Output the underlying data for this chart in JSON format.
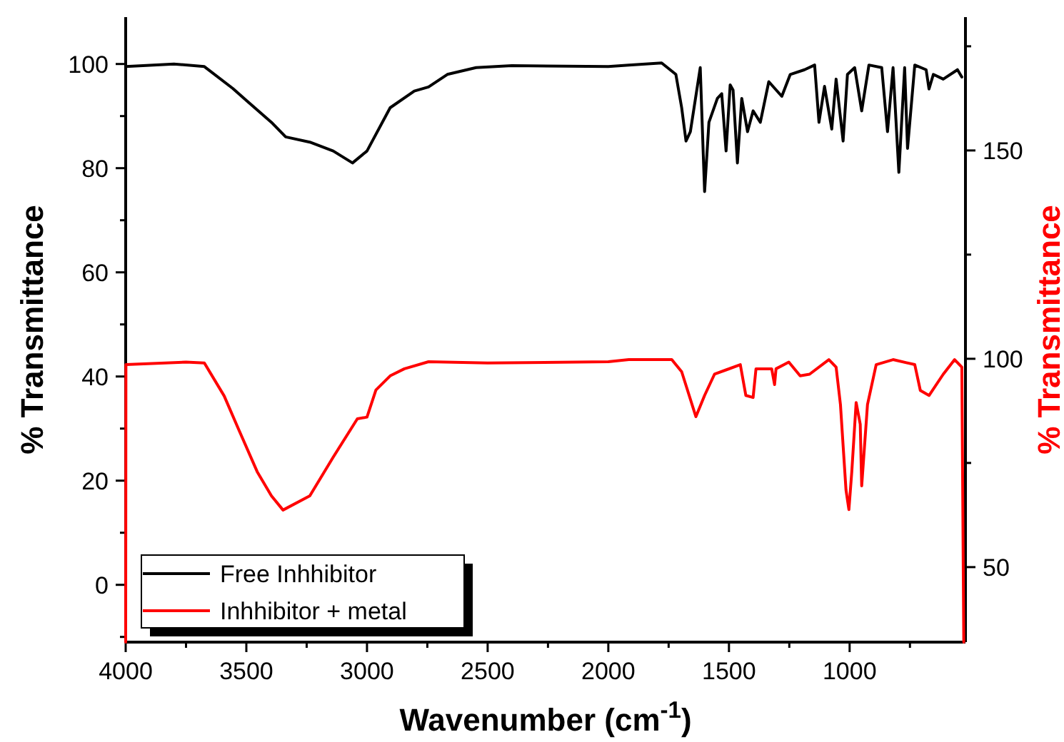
{
  "chart_data": {
    "type": "line",
    "xlabel": "Wavenumber (cm$^{-1}$)",
    "ylabel": "% Transmittance",
    "y2label": "% Transmittance",
    "xlim": [
      4000,
      520
    ],
    "xticks": [
      4000,
      {
        "value": 3750,
        "label": null
      },
      3500,
      {
        "value": 3250,
        "label": null
      },
      3000,
      {
        "value": 2750,
        "label": null
      },
      2500,
      {
        "value": 2250,
        "label": null
      },
      2000,
      {
        "value": 1750,
        "label": null
      },
      1500,
      {
        "value": 1250,
        "label": null
      },
      1000,
      {
        "value": 750,
        "label": null
      }
    ],
    "ylim": [
      -11,
      109
    ],
    "yticks": [
      {
        "value": -10,
        "label": null
      },
      0,
      {
        "value": 10,
        "label": null
      },
      20,
      {
        "value": 30,
        "label": null
      },
      40,
      {
        "value": 50,
        "label": null
      },
      60,
      {
        "value": 70,
        "label": null
      },
      80,
      {
        "value": 90,
        "label": null
      },
      100
    ],
    "y2lim": [
      32,
      182
    ],
    "y2ticks": [
      50,
      {
        "value": 75,
        "label": null
      },
      100,
      {
        "value": 125,
        "label": null
      },
      150,
      {
        "value": 175,
        "label": null
      }
    ],
    "legend": "bottom left",
    "grid": false,
    "marker": "none",
    "line_style": "solid",
    "series": [
      {
        "name": "Free Inhhibitor",
        "color": "#000000",
        "x": [
          4000,
          3800,
          3674,
          3556,
          3500,
          3396,
          3337,
          3237,
          3140,
          3060,
          3000,
          2904,
          2804,
          2745,
          2667,
          2548,
          2400,
          2000,
          1915,
          1779,
          1720,
          1696,
          1678,
          1660,
          1619,
          1607,
          1601,
          1583,
          1548,
          1530,
          1512,
          1495,
          1483,
          1465,
          1447,
          1423,
          1400,
          1370,
          1335,
          1281,
          1246,
          1187,
          1145,
          1127,
          1104,
          1074,
          1056,
          1027,
          1009,
          979,
          950,
          920,
          867,
          843,
          820,
          796,
          772,
          760,
          730,
          683,
          671,
          653,
          612,
          553,
          535
        ],
        "values": [
          99.5,
          100,
          99.5,
          95.3,
          93,
          88.8,
          86,
          85,
          83.3,
          81,
          83.3,
          91.6,
          94.8,
          95.6,
          98,
          99.3,
          99.7,
          99.5,
          99.8,
          100.2,
          98,
          91.6,
          85.2,
          87,
          99.3,
          83.3,
          75.5,
          88.8,
          93.4,
          94.3,
          83.3,
          96,
          95,
          81,
          93.4,
          87,
          91,
          88.8,
          96.6,
          93.8,
          98,
          98.9,
          99.8,
          88.8,
          95.7,
          87.5,
          97.1,
          85.2,
          98,
          99.3,
          91,
          99.8,
          99.3,
          87,
          99.3,
          79.2,
          99.3,
          83.8,
          99.8,
          98.9,
          95.2,
          98,
          97.1,
          98.9,
          97.5
        ]
      },
      {
        "name": "Inhhibitor + metal",
        "color": "#ff0000",
        "axis": "y2",
        "x": [
          4000,
          3999,
          3750,
          3674,
          3592,
          3533,
          3455,
          3396,
          3348,
          3237,
          3140,
          3040,
          3000,
          2963,
          2904,
          2845,
          2745,
          2500,
          2000,
          1915,
          1737,
          1696,
          1637,
          1601,
          1560,
          1453,
          1430,
          1400,
          1388,
          1323,
          1311,
          1305,
          1252,
          1205,
          1166,
          1086,
          1056,
          1038,
          1015,
          1003,
          991,
          973,
          956,
          950,
          926,
          890,
          820,
          730,
          707,
          671,
          612,
          565,
          535,
          527
        ],
        "values": [
          32,
          98.6,
          99.2,
          99,
          91.1,
          83.2,
          72.9,
          67.1,
          63.7,
          67.1,
          76.4,
          85.6,
          86,
          92.5,
          95.9,
          97.6,
          99.3,
          99,
          99.3,
          99.8,
          99.8,
          96.9,
          86.1,
          91.2,
          96.3,
          98.6,
          91.2,
          90.7,
          97.6,
          97.6,
          93.8,
          97.6,
          99.2,
          95.9,
          96.3,
          99.8,
          98,
          89,
          68.5,
          63.8,
          72.9,
          89.5,
          84.3,
          69.5,
          89,
          98.6,
          99.8,
          98.6,
          92.4,
          91.2,
          96.3,
          99.8,
          98,
          32
        ]
      }
    ]
  }
}
